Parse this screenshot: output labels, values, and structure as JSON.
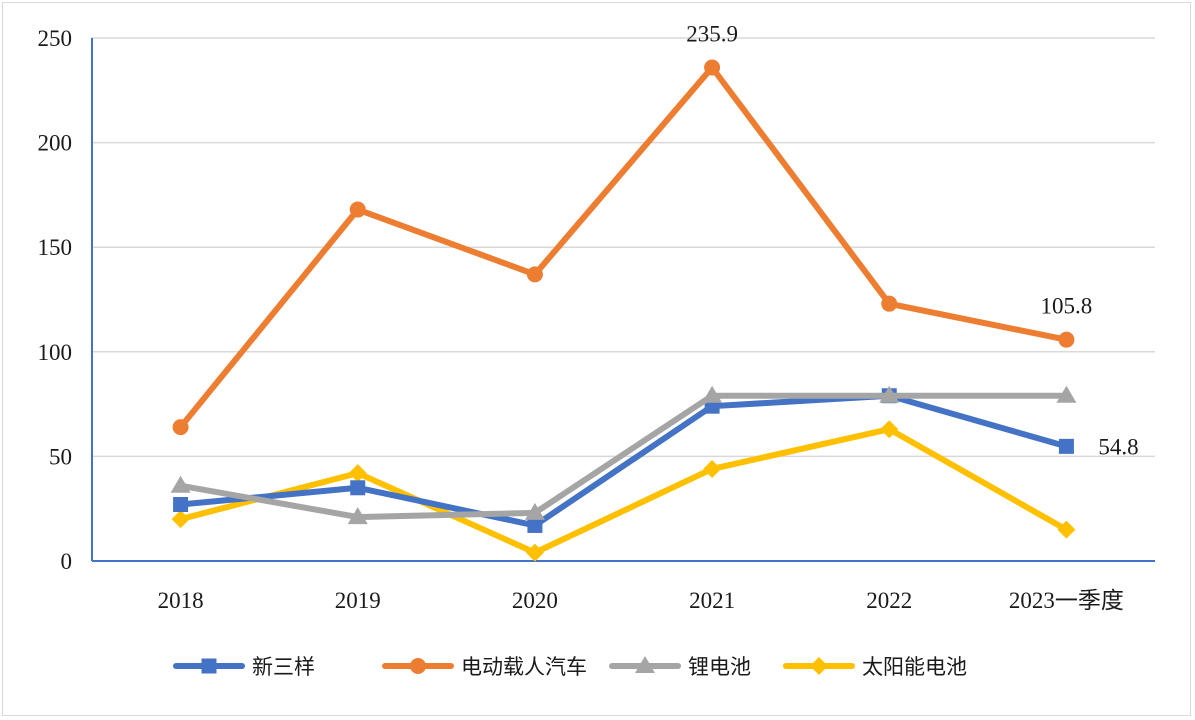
{
  "chart_data": {
    "type": "line",
    "title": "",
    "xlabel": "",
    "ylabel": "",
    "categories": [
      "2018",
      "2019",
      "2020",
      "2021",
      "2022",
      "2023一季度"
    ],
    "ylim": [
      0,
      250
    ],
    "yticks": [
      0,
      50,
      100,
      150,
      200,
      250
    ],
    "grid": true,
    "legend_position": "bottom",
    "series": [
      {
        "name": "新三样",
        "color": "#4472C4",
        "marker": "square",
        "values": [
          27,
          35,
          17,
          74,
          79,
          54.8
        ]
      },
      {
        "name": "电动载人汽车",
        "color": "#ED7D31",
        "marker": "circle",
        "values": [
          64,
          168,
          137,
          235.9,
          123,
          105.8
        ]
      },
      {
        "name": "锂电池",
        "color": "#A5A5A5",
        "marker": "triangle",
        "values": [
          36,
          21,
          23,
          79,
          79,
          79
        ]
      },
      {
        "name": "太阳能电池",
        "color": "#FFC000",
        "marker": "diamond",
        "values": [
          20,
          42,
          4,
          44,
          63,
          15
        ]
      }
    ],
    "data_labels": [
      {
        "series": 1,
        "index": 3,
        "text": "235.9"
      },
      {
        "series": 1,
        "index": 5,
        "text": "105.8"
      },
      {
        "series": 0,
        "index": 5,
        "text": "54.8"
      }
    ]
  }
}
